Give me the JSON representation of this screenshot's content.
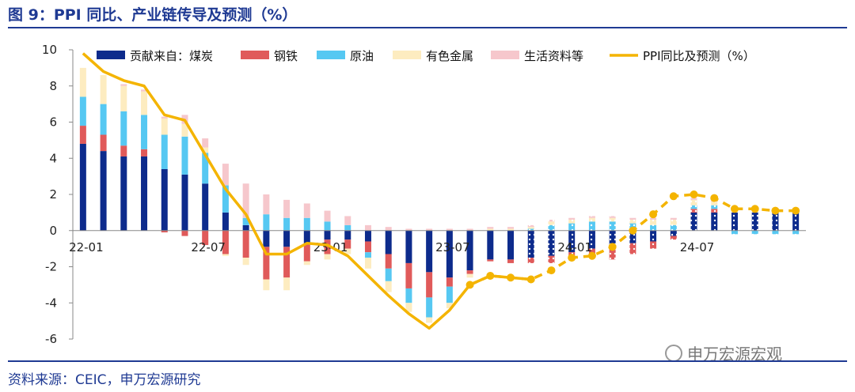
{
  "title": "图 9：PPI 同比、产业链传导及预测（%）",
  "source": "资料来源：CEIC，申万宏源研究",
  "watermark": "申万宏源宏观",
  "colors": {
    "coal": "#0d2b8c",
    "steel": "#e05a5a",
    "oil": "#56c8f2",
    "metal": "#fdecc0",
    "living": "#f6c7cc",
    "ppi": "#f4b400"
  },
  "chart_data": {
    "type": "bar",
    "stacked": true,
    "ylim": [
      -6,
      10
    ],
    "yticks": [
      -6,
      -4,
      -2,
      0,
      2,
      4,
      6,
      8,
      10
    ],
    "xtick_labels": [
      {
        "index": 0,
        "label": "22-01"
      },
      {
        "index": 6,
        "label": "22-07"
      },
      {
        "index": 12,
        "label": "23-01"
      },
      {
        "index": 18,
        "label": "23-07"
      },
      {
        "index": 24,
        "label": "24-01"
      },
      {
        "index": 30,
        "label": "24-07"
      }
    ],
    "categories": [
      "22-01",
      "22-02",
      "22-03",
      "22-04",
      "22-05",
      "22-06",
      "22-07",
      "22-08",
      "22-09",
      "22-10",
      "22-11",
      "22-12",
      "23-01",
      "23-02",
      "23-03",
      "23-04",
      "23-05",
      "23-06",
      "23-07",
      "23-08",
      "23-09",
      "23-10",
      "23-11",
      "23-12",
      "24-01",
      "24-02",
      "24-03",
      "24-04",
      "24-05",
      "24-06",
      "24-07",
      "24-08",
      "24-09",
      "24-10",
      "24-11",
      "24-12"
    ],
    "forecast_start_index": 22,
    "series": [
      {
        "name": "贡献来自：煤炭",
        "key": "coal",
        "values": [
          4.8,
          4.4,
          4.1,
          4.1,
          3.4,
          3.1,
          2.6,
          1.0,
          0.3,
          -0.9,
          -0.9,
          -0.7,
          -0.5,
          -0.5,
          -0.6,
          -1.3,
          -1.8,
          -2.3,
          -2.6,
          -2.2,
          -1.6,
          -1.6,
          -1.5,
          -1.4,
          -1.2,
          -1.0,
          -0.9,
          -0.7,
          -0.6,
          -0.3,
          1.0,
          1.0,
          1.0,
          1.0,
          1.0,
          1.0
        ]
      },
      {
        "name": "钢铁",
        "key": "steel",
        "values": [
          1.0,
          0.9,
          0.6,
          0.4,
          -0.1,
          -0.3,
          -0.8,
          -1.3,
          -1.5,
          -1.8,
          -1.7,
          -1.0,
          -0.8,
          -0.5,
          -0.6,
          -0.8,
          -1.4,
          -1.4,
          -0.5,
          -0.2,
          -0.1,
          -0.2,
          -0.3,
          -0.4,
          -0.3,
          -0.5,
          -0.7,
          -0.6,
          -0.4,
          -0.2,
          0.2,
          0.2,
          0.0,
          0.0,
          0.0,
          0.0
        ]
      },
      {
        "name": "原油",
        "key": "oil",
        "values": [
          1.6,
          1.7,
          1.9,
          1.9,
          1.9,
          2.1,
          1.7,
          1.5,
          0.4,
          0.9,
          0.7,
          0.7,
          0.5,
          0.3,
          -0.3,
          -0.7,
          -0.8,
          -1.1,
          -0.9,
          0.0,
          0.0,
          0.0,
          0.1,
          0.3,
          0.4,
          0.5,
          0.5,
          0.4,
          0.3,
          0.3,
          0.2,
          0.2,
          -0.2,
          -0.2,
          -0.2,
          -0.2
        ]
      },
      {
        "name": "有色金属",
        "key": "metal",
        "values": [
          1.6,
          1.6,
          1.4,
          1.3,
          0.9,
          0.7,
          0.3,
          -0.1,
          -0.4,
          -0.6,
          -0.7,
          -0.2,
          -0.3,
          -0.3,
          -0.6,
          -0.6,
          -0.5,
          -0.3,
          -0.3,
          -0.2,
          0.1,
          0.1,
          0.1,
          0.2,
          0.2,
          0.2,
          0.2,
          0.2,
          0.3,
          0.3,
          0.3,
          0.2,
          0.2,
          0.1,
          0.1,
          0.1
        ]
      },
      {
        "name": "生活资料等",
        "key": "living",
        "values": [
          0.0,
          0.0,
          0.1,
          0.1,
          0.1,
          0.5,
          0.5,
          1.2,
          1.9,
          1.1,
          1.0,
          0.8,
          0.6,
          0.5,
          0.3,
          0.2,
          0.1,
          0.1,
          0.1,
          0.1,
          0.1,
          0.1,
          0.1,
          0.1,
          0.1,
          0.1,
          0.1,
          0.1,
          0.1,
          0.1,
          0.1,
          0.1,
          0.1,
          0.1,
          0.1,
          0.1
        ]
      }
    ],
    "line": {
      "name": "PPI同比及预测（%）",
      "key": "ppi",
      "values": [
        9.8,
        8.8,
        8.3,
        8.0,
        6.4,
        6.1,
        4.2,
        2.3,
        0.9,
        -1.3,
        -1.3,
        -0.7,
        -0.8,
        -1.4,
        -2.5,
        -3.6,
        -4.6,
        -5.4,
        -4.4,
        -3.0,
        -2.5,
        -2.6,
        -2.7,
        -2.2,
        -1.5,
        -1.4,
        -0.9,
        0.0,
        0.9,
        1.9,
        2.0,
        1.8,
        1.2,
        1.2,
        1.1,
        1.1
      ]
    }
  }
}
